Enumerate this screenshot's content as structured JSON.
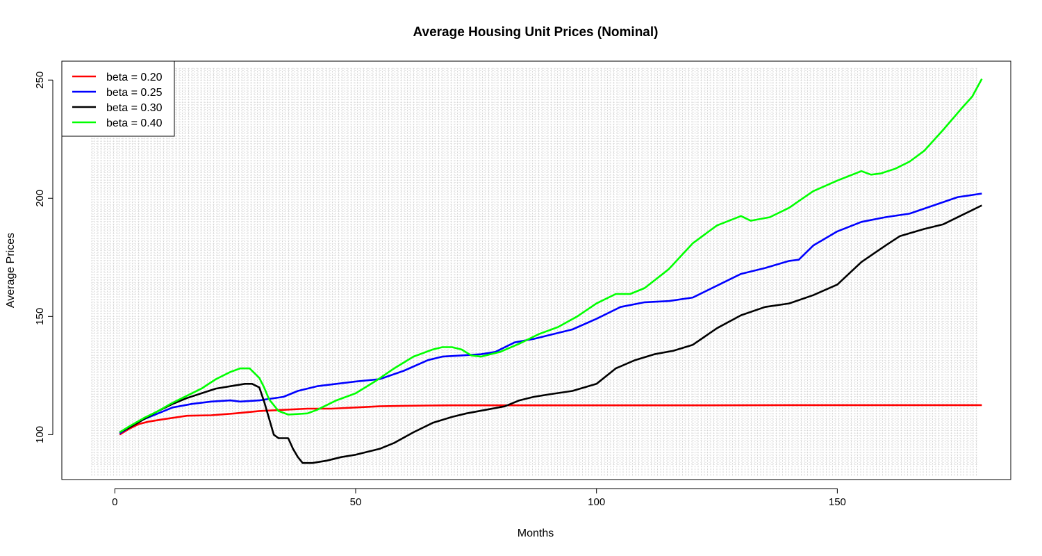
{
  "chart_data": {
    "type": "line",
    "title": "Average Housing Unit Prices (Nominal)",
    "xlabel": "Months",
    "ylabel": "Average Prices",
    "xlim": [
      -11,
      186
    ],
    "ylim": [
      81,
      258
    ],
    "x_ticks": [
      0,
      50,
      100,
      150
    ],
    "y_ticks": [
      100,
      150,
      200,
      250
    ],
    "grid": "dense light-gray dashed grid",
    "legend_position": "top-left",
    "series": [
      {
        "name": "beta = 0.20",
        "color": "#ff0000",
        "points": [
          [
            1,
            100
          ],
          [
            3,
            102.5
          ],
          [
            5,
            104.5
          ],
          [
            7,
            105.5
          ],
          [
            10,
            106.5
          ],
          [
            15,
            108
          ],
          [
            20,
            108.2
          ],
          [
            25,
            109
          ],
          [
            30,
            110
          ],
          [
            35,
            110.5
          ],
          [
            40,
            111
          ],
          [
            45,
            111
          ],
          [
            50,
            111.5
          ],
          [
            55,
            112
          ],
          [
            60,
            112.2
          ],
          [
            65,
            112.3
          ],
          [
            70,
            112.4
          ],
          [
            80,
            112.4
          ],
          [
            100,
            112.4
          ],
          [
            120,
            112.4
          ],
          [
            140,
            112.5
          ],
          [
            160,
            112.5
          ],
          [
            180,
            112.5
          ]
        ]
      },
      {
        "name": "beta = 0.25",
        "color": "#0000ff",
        "points": [
          [
            1,
            100.5
          ],
          [
            3,
            103
          ],
          [
            6,
            106.5
          ],
          [
            9,
            109
          ],
          [
            12,
            111.5
          ],
          [
            16,
            113
          ],
          [
            20,
            114
          ],
          [
            24,
            114.5
          ],
          [
            26,
            114
          ],
          [
            30,
            114.5
          ],
          [
            35,
            116
          ],
          [
            38,
            118.5
          ],
          [
            42,
            120.5
          ],
          [
            46,
            121.5
          ],
          [
            50,
            122.5
          ],
          [
            55,
            123.5
          ],
          [
            60,
            127
          ],
          [
            65,
            131.5
          ],
          [
            68,
            133
          ],
          [
            72,
            133.5
          ],
          [
            76,
            134
          ],
          [
            79,
            135
          ],
          [
            83,
            139
          ],
          [
            87,
            140.5
          ],
          [
            90,
            142
          ],
          [
            95,
            144.5
          ],
          [
            100,
            149
          ],
          [
            105,
            154
          ],
          [
            110,
            156
          ],
          [
            115,
            156.5
          ],
          [
            120,
            158
          ],
          [
            125,
            163
          ],
          [
            130,
            168
          ],
          [
            135,
            170.5
          ],
          [
            140,
            173.5
          ],
          [
            142,
            174
          ],
          [
            145,
            180
          ],
          [
            150,
            186
          ],
          [
            155,
            190
          ],
          [
            160,
            192
          ],
          [
            165,
            193.5
          ],
          [
            170,
            197
          ],
          [
            175,
            200.5
          ],
          [
            180,
            202
          ]
        ]
      },
      {
        "name": "beta = 0.30",
        "color": "#000000",
        "points": [
          [
            1,
            101
          ],
          [
            3,
            103
          ],
          [
            6,
            106.5
          ],
          [
            9,
            110
          ],
          [
            12,
            113
          ],
          [
            15,
            115.5
          ],
          [
            18,
            117.5
          ],
          [
            21,
            119.5
          ],
          [
            24,
            120.5
          ],
          [
            27,
            121.5
          ],
          [
            28.5,
            121.5
          ],
          [
            30,
            120
          ],
          [
            31,
            114
          ],
          [
            32,
            107
          ],
          [
            33,
            100
          ],
          [
            34,
            98.5
          ],
          [
            36,
            98.5
          ],
          [
            37,
            94
          ],
          [
            38,
            90.5
          ],
          [
            39,
            88
          ],
          [
            41,
            88
          ],
          [
            44,
            89
          ],
          [
            47,
            90.5
          ],
          [
            50,
            91.5
          ],
          [
            55,
            94
          ],
          [
            58,
            96.5
          ],
          [
            62,
            101
          ],
          [
            66,
            105
          ],
          [
            70,
            107.5
          ],
          [
            73,
            109
          ],
          [
            77,
            110.5
          ],
          [
            81,
            112
          ],
          [
            84,
            114.5
          ],
          [
            87,
            116
          ],
          [
            90,
            117
          ],
          [
            95,
            118.5
          ],
          [
            100,
            121.5
          ],
          [
            104,
            128
          ],
          [
            108,
            131.5
          ],
          [
            112,
            134
          ],
          [
            116,
            135.5
          ],
          [
            120,
            138
          ],
          [
            125,
            145
          ],
          [
            130,
            150.5
          ],
          [
            135,
            154
          ],
          [
            140,
            155.5
          ],
          [
            145,
            159
          ],
          [
            150,
            163.5
          ],
          [
            155,
            173
          ],
          [
            160,
            180
          ],
          [
            163,
            184
          ],
          [
            168,
            187
          ],
          [
            172,
            189
          ],
          [
            176,
            193
          ],
          [
            180,
            197
          ]
        ]
      },
      {
        "name": "beta = 0.40",
        "color": "#00ff00",
        "points": [
          [
            1,
            101
          ],
          [
            3,
            103.5
          ],
          [
            6,
            107
          ],
          [
            9,
            110
          ],
          [
            12,
            113.5
          ],
          [
            15,
            116.5
          ],
          [
            18,
            119.5
          ],
          [
            21,
            123.5
          ],
          [
            24,
            126.5
          ],
          [
            26,
            128
          ],
          [
            28,
            128
          ],
          [
            30,
            124
          ],
          [
            31,
            120
          ],
          [
            32,
            115
          ],
          [
            34,
            110
          ],
          [
            36,
            108.5
          ],
          [
            40,
            109
          ],
          [
            42,
            110.5
          ],
          [
            46,
            114.5
          ],
          [
            50,
            117.5
          ],
          [
            54,
            122.5
          ],
          [
            58,
            128
          ],
          [
            62,
            133
          ],
          [
            66,
            136
          ],
          [
            68,
            137
          ],
          [
            70,
            137
          ],
          [
            72,
            136
          ],
          [
            74,
            133.5
          ],
          [
            76,
            133
          ],
          [
            80,
            135
          ],
          [
            84,
            138.5
          ],
          [
            88,
            142.5
          ],
          [
            92,
            145.5
          ],
          [
            96,
            150
          ],
          [
            100,
            155.5
          ],
          [
            104,
            159.5
          ],
          [
            107,
            159.5
          ],
          [
            110,
            162
          ],
          [
            115,
            170
          ],
          [
            120,
            181
          ],
          [
            125,
            188.5
          ],
          [
            130,
            192.5
          ],
          [
            132,
            190.5
          ],
          [
            136,
            192
          ],
          [
            140,
            196
          ],
          [
            145,
            203
          ],
          [
            150,
            207.5
          ],
          [
            155,
            211.5
          ],
          [
            157,
            210
          ],
          [
            159,
            210.5
          ],
          [
            162,
            212.5
          ],
          [
            165,
            215.5
          ],
          [
            168,
            220
          ],
          [
            172,
            229
          ],
          [
            176,
            238.5
          ],
          [
            178,
            243
          ],
          [
            180,
            250.5
          ]
        ]
      }
    ]
  }
}
